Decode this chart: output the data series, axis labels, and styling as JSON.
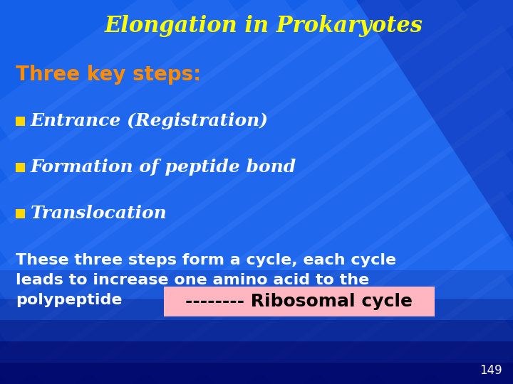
{
  "title": "Elongation in Prokaryotes",
  "title_color": "#FFFF00",
  "title_fontsize": 22,
  "bg_color": "#1560E8",
  "heading": "Three key steps:",
  "heading_color": "#FF8C00",
  "heading_fontsize": 20,
  "bullet_color": "#FFD700",
  "bullet_text_color": "#FFFFFF",
  "bullet_fontsize": 18,
  "bullets": [
    "Entrance (Registration)",
    "Formation of peptide bond",
    "Translocation"
  ],
  "body_text_line1": "These three steps form a cycle, each cycle",
  "body_text_line2": "leads to increase one amino acid to the",
  "body_text_line3": "polypeptide",
  "body_color": "#FFFFFF",
  "body_fontsize": 16,
  "ribosomal_text": "-------- Ribosomal cycle",
  "ribosomal_bg": "#FFB6C1",
  "ribosomal_fontsize": 18,
  "page_number": "149",
  "page_color": "#FFFFFF",
  "stripe_color_light": "#3575F0",
  "stripe_color_dark": "#0030C0",
  "navy_bg": "#000060"
}
